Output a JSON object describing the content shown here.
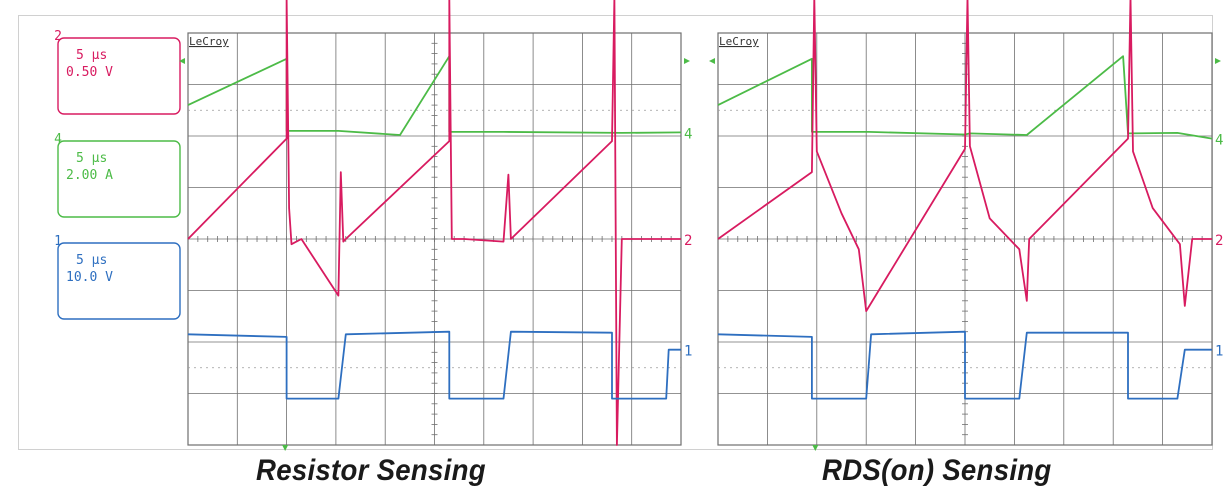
{
  "channel_boxes": [
    {
      "id": "2",
      "time": "5 µs",
      "scale": "0.50 V",
      "color": "#d81b60"
    },
    {
      "id": "4",
      "time": "5 µs",
      "scale": "2.00 A",
      "color": "#4cbb47"
    },
    {
      "id": "1",
      "time": "5 µs",
      "scale": "10.0 V",
      "color": "#2e6fc0"
    }
  ],
  "colors": {
    "ch2": "#d81b60",
    "ch4": "#4cbb47",
    "ch1": "#2e6fc0",
    "grid": "#6f6f6f"
  },
  "chart_data": [
    {
      "type": "line",
      "title": "Resistor Sensing",
      "brand": "LeCroy",
      "xlabel": "",
      "ylabel": "",
      "grid": true,
      "time_per_div": "5 µs",
      "divisions_x": 10,
      "divisions_y": 8,
      "xlim": [
        0,
        10
      ],
      "ylim": [
        -4,
        4
      ],
      "series": [
        {
          "name": "4",
          "scale": "2.00 A",
          "x": [
            0,
            2.0,
            2.0,
            3.05,
            4.3,
            5.3,
            5.3,
            6.4,
            8.8,
            8.8,
            10
          ],
          "y": [
            2.6,
            3.5,
            2.1,
            2.1,
            2.02,
            3.55,
            2.08,
            2.08,
            2.06,
            2.06,
            2.07
          ]
        },
        {
          "name": "2",
          "scale": "0.50 V",
          "x": [
            0,
            2.0,
            2.0,
            2.05,
            2.1,
            2.3,
            3.05,
            3.1,
            3.15,
            3.2,
            5.3,
            5.3,
            5.35,
            5.4,
            5.6,
            6.4,
            6.5,
            6.55,
            8.6,
            8.65,
            8.7,
            8.8,
            10
          ],
          "y": [
            0.0,
            1.95,
            4.7,
            0.6,
            -0.1,
            0.0,
            -1.1,
            1.3,
            -0.05,
            0.0,
            1.9,
            4.7,
            0.0,
            0.0,
            0.0,
            -0.05,
            1.25,
            0.0,
            1.9,
            4.7,
            -4.0,
            0.0,
            0.0
          ]
        },
        {
          "name": "1",
          "scale": "10.0 V",
          "x": [
            0,
            2.0,
            2.0,
            3.05,
            3.2,
            5.3,
            5.3,
            6.4,
            6.55,
            8.6,
            8.6,
            9.7,
            9.75,
            10
          ],
          "y": [
            -1.85,
            -1.9,
            -3.1,
            -3.1,
            -1.85,
            -1.8,
            -3.1,
            -3.1,
            -1.8,
            -1.82,
            -3.1,
            -3.1,
            -2.15,
            -2.15
          ]
        }
      ]
    },
    {
      "type": "line",
      "title": "RDS(on) Sensing",
      "brand": "LeCroy",
      "xlabel": "",
      "ylabel": "",
      "grid": true,
      "time_per_div": "5 µs",
      "divisions_x": 10,
      "divisions_y": 8,
      "xlim": [
        0,
        10
      ],
      "ylim": [
        -4,
        4
      ],
      "series": [
        {
          "name": "4",
          "scale": "2.00 A",
          "x": [
            0,
            1.9,
            1.9,
            3.05,
            5.0,
            5.1,
            6.25,
            8.2,
            8.3,
            9.3,
            10
          ],
          "y": [
            2.6,
            3.5,
            2.08,
            2.08,
            2.03,
            2.05,
            2.02,
            3.55,
            2.05,
            2.06,
            1.95
          ]
        },
        {
          "name": "2",
          "scale": "0.50 V",
          "x": [
            0,
            1.9,
            1.95,
            2.0,
            2.5,
            2.85,
            3.0,
            5.0,
            5.05,
            5.1,
            5.5,
            6.1,
            6.25,
            6.3,
            8.3,
            8.35,
            8.4,
            8.8,
            9.35,
            9.45,
            9.6,
            10
          ],
          "y": [
            0.0,
            1.3,
            4.7,
            1.7,
            0.5,
            -0.2,
            -1.4,
            1.75,
            4.7,
            1.8,
            0.4,
            -0.2,
            -1.2,
            0.0,
            1.95,
            4.7,
            1.7,
            0.6,
            -0.1,
            -1.3,
            0.0,
            0.0
          ]
        },
        {
          "name": "1",
          "scale": "10.0 V",
          "x": [
            0,
            1.9,
            1.9,
            3.0,
            3.1,
            5.0,
            5.0,
            6.1,
            6.25,
            8.3,
            8.3,
            9.3,
            9.45,
            10
          ],
          "y": [
            -1.85,
            -1.9,
            -3.1,
            -3.1,
            -1.85,
            -1.8,
            -3.1,
            -3.1,
            -1.82,
            -1.82,
            -3.1,
            -3.1,
            -2.15,
            -2.15
          ]
        }
      ]
    }
  ]
}
